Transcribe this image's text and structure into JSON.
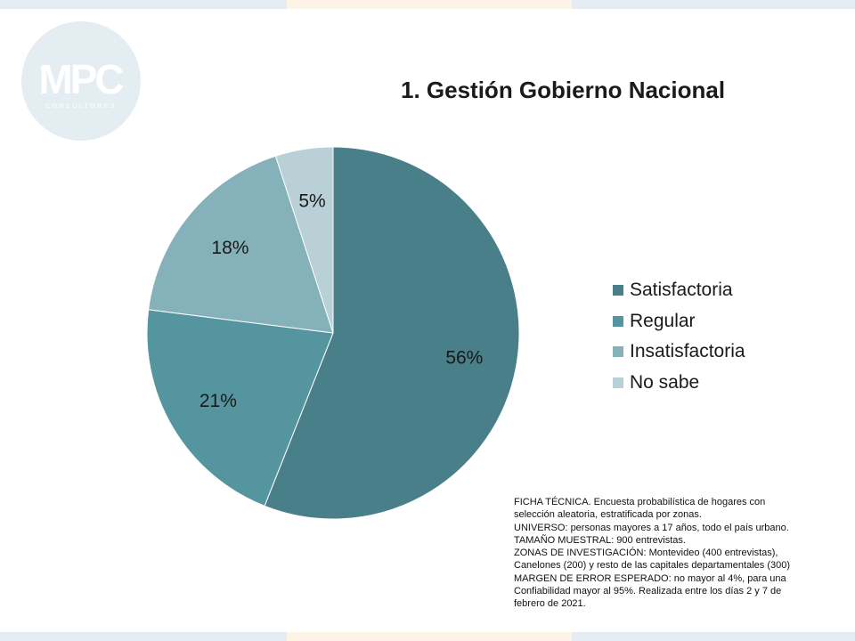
{
  "logo": {
    "text": "MPC",
    "subtext": "CONSULTORES",
    "background": "#e4edf1"
  },
  "chart_data": {
    "type": "pie",
    "title": "1. Gestión Gobierno Nacional",
    "categories": [
      "Satisfactoria",
      "Regular",
      "Insatisfactoria",
      "No sabe"
    ],
    "values": [
      56,
      21,
      18,
      5
    ],
    "value_labels": [
      "56%",
      "21%",
      "18%",
      "5%"
    ],
    "colors": [
      "#487f88",
      "#55959f",
      "#84b1ba",
      "#b8d0d6"
    ],
    "start_angle_deg": 0,
    "direction": "clockwise",
    "legend_position": "right"
  },
  "ficha_tecnica": {
    "lines": [
      "FICHA TÉCNICA. Encuesta probabilística de hogares con",
      "selección aleatoria, estratificada por zonas.",
      "UNIVERSO: personas mayores a 17 años, todo el país urbano.",
      "TAMAÑO MUESTRAL: 900 entrevistas.",
      "ZONAS DE INVESTIGACIÓN: Montevideo (400 entrevistas),",
      "Canelones (200) y resto de las capitales departamentales (300)",
      "MARGEN DE ERROR ESPERADO: no mayor al 4%, para una",
      "Confiabilidad mayor al 95%. Realizada entre los días 2 y 7 de",
      "febrero de 2021."
    ]
  }
}
